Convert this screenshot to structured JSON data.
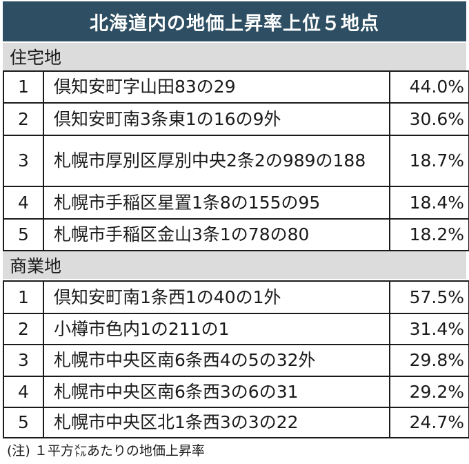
{
  "title": "北海道内の地価上昇率上位５地点",
  "residential": {
    "label": "住宅地",
    "rows": [
      {
        "rank": "1",
        "location": "倶知安町字山田83の29",
        "rate": "44.0%"
      },
      {
        "rank": "2",
        "location": "倶知安町南3条東1の16の9外",
        "rate": "30.6%"
      },
      {
        "rank": "3",
        "location": "札幌市厚別区厚別中央2条2の989の188",
        "rate": "18.7%"
      },
      {
        "rank": "4",
        "location": "札幌市手稲区星置1条8の155の95",
        "rate": "18.4%"
      },
      {
        "rank": "5",
        "location": "札幌市手稲区金山3条1の78の80",
        "rate": "18.2%"
      }
    ]
  },
  "commercial": {
    "label": "商業地",
    "rows": [
      {
        "rank": "1",
        "location": "倶知安町南1条西1の40の1外",
        "rate": "57.5%"
      },
      {
        "rank": "2",
        "location": "小樽市色内1の211の1",
        "rate": "31.4%"
      },
      {
        "rank": "3",
        "location": "札幌市中央区南6条西4の5の32外",
        "rate": "29.8%"
      },
      {
        "rank": "4",
        "location": "札幌市中央区南6条西3の6の31",
        "rate": "29.2%"
      },
      {
        "rank": "5",
        "location": "札幌市中央区北1条西3の3の22",
        "rate": "24.7%"
      }
    ]
  },
  "note": "(注) １平方㍍あたりの地価上昇率"
}
